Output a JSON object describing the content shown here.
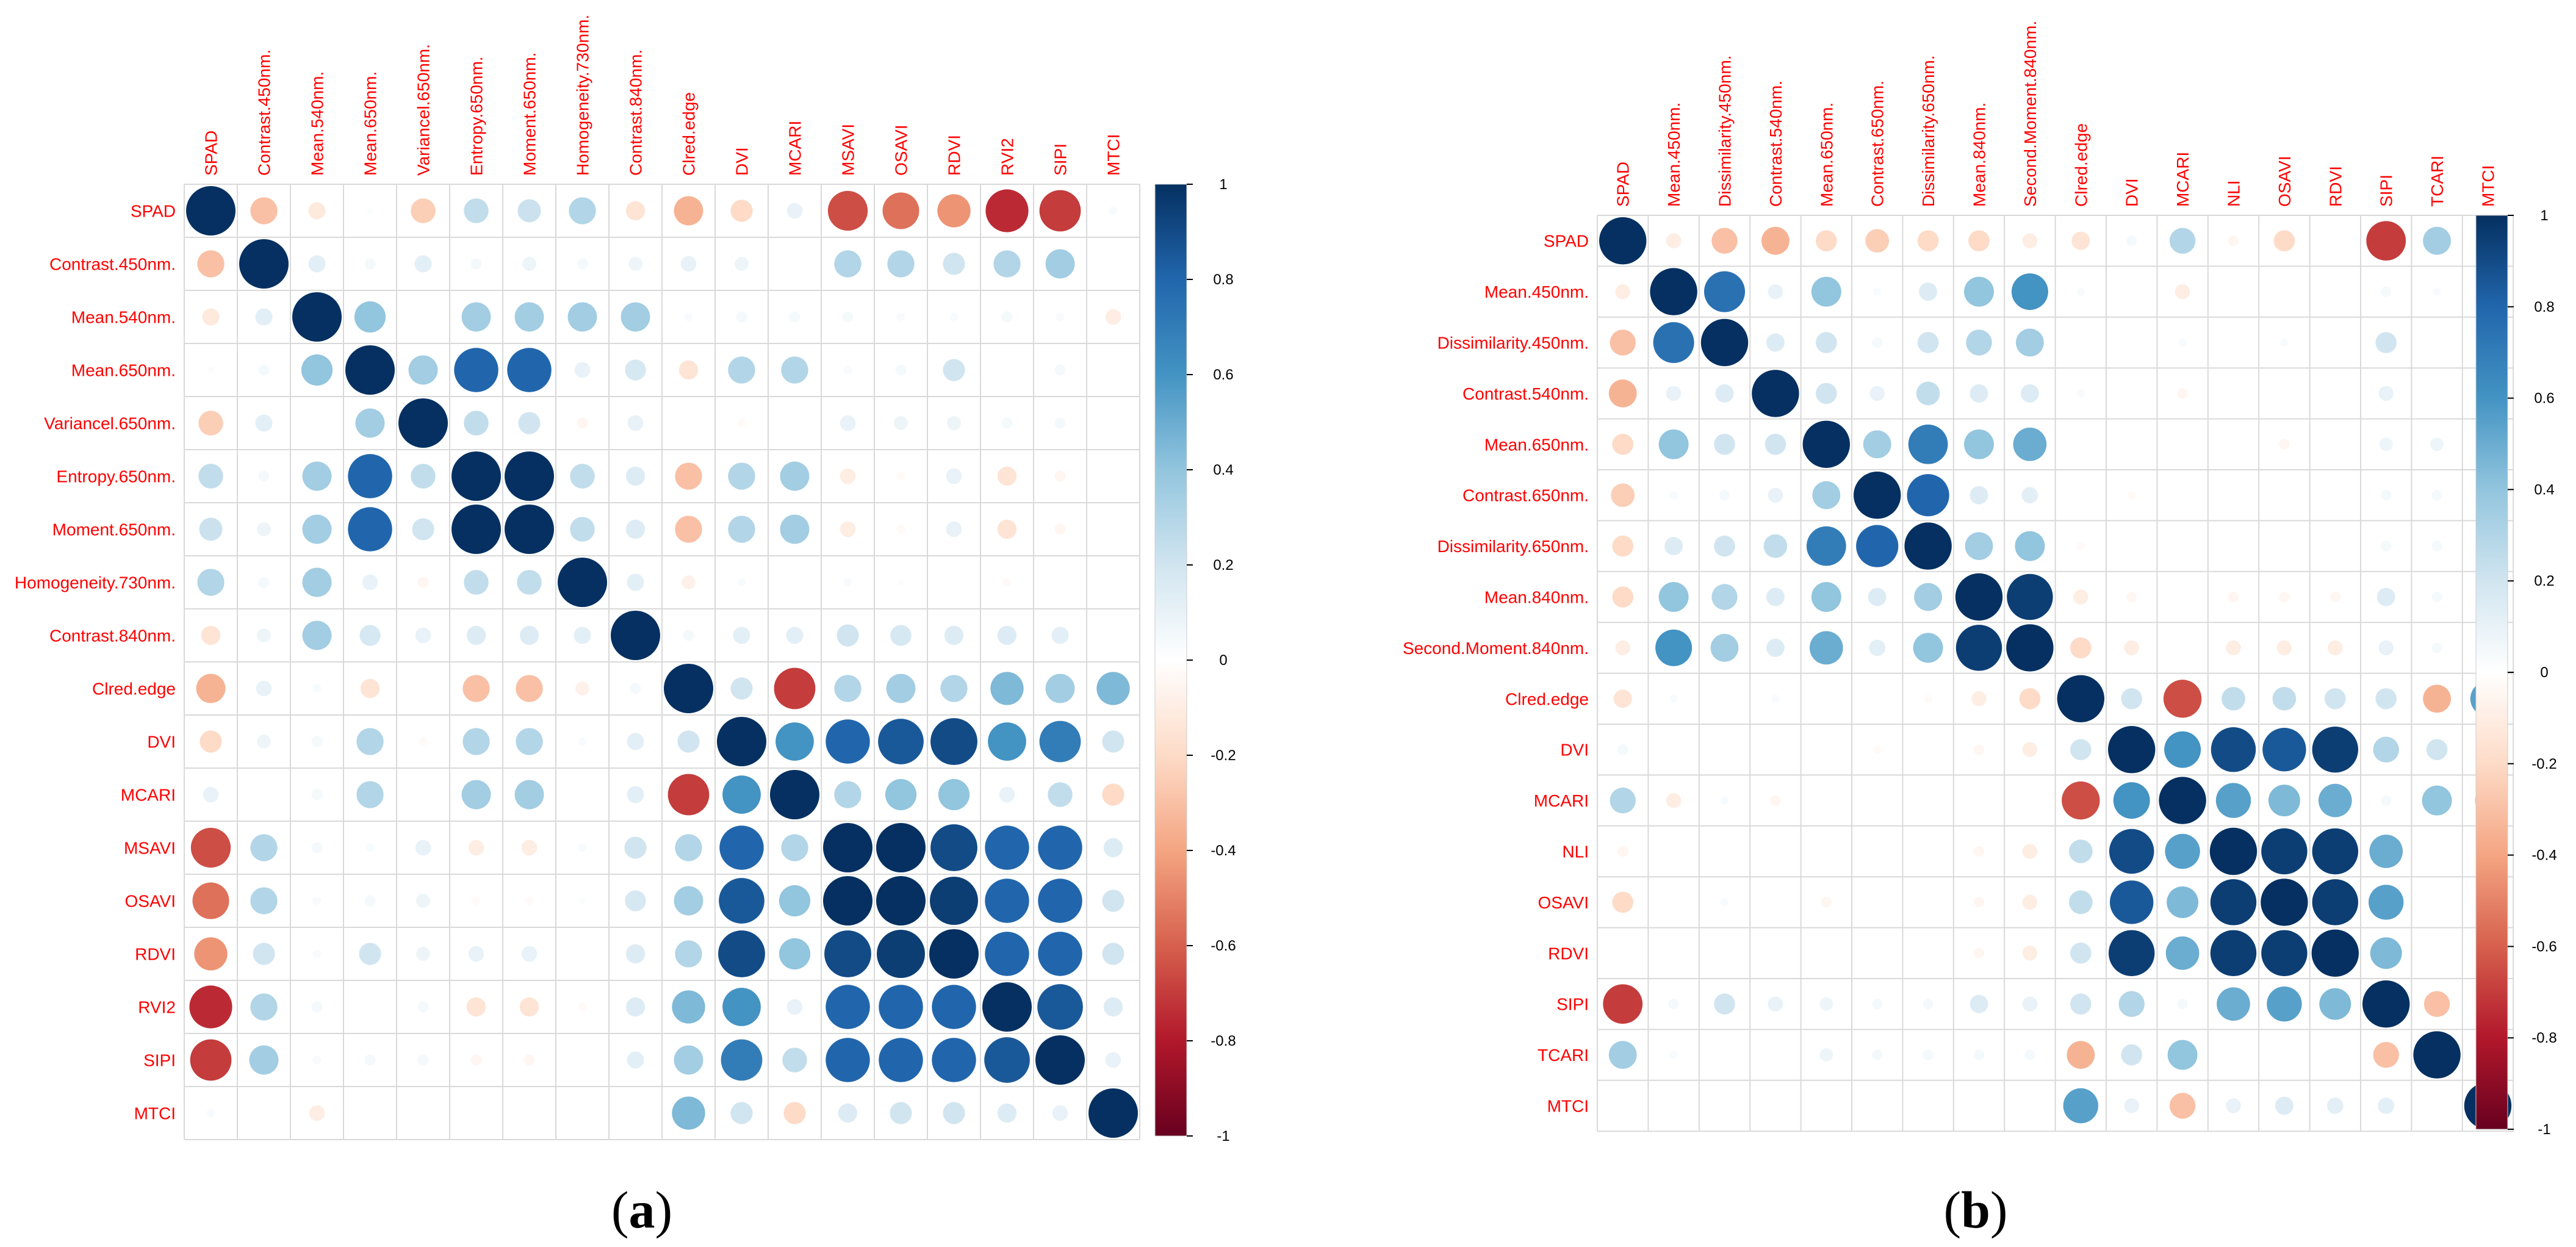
{
  "colors": {
    "label": "#FF0000",
    "grid": "#D9D9D9",
    "scale": [
      "#67001F",
      "#B2182B",
      "#D6604D",
      "#F4A582",
      "#FDDBC7",
      "#FFFFFF",
      "#D1E5F0",
      "#92C5DE",
      "#4393C3",
      "#2166AC",
      "#053061"
    ]
  },
  "chart_data": [
    {
      "type": "heatmap",
      "subtype": "correlation-circles-lower-and-upper",
      "caption_letter": "a",
      "caption_left": "(",
      "caption_right": ")",
      "title": "",
      "variables": [
        "SPAD",
        "Contrast.450nm.",
        "Mean.540nm.",
        "Mean.650nm.",
        "Variancel.650nm.",
        "Entropy.650nm.",
        "Moment.650nm.",
        "Homogeneity.730nm.",
        "Contrast.840nm.",
        "Clred.edge",
        "DVI",
        "MCARI",
        "MSAVI",
        "OSAVI",
        "RDVI",
        "RVI2",
        "SIPI",
        "MTCI"
      ],
      "colorbar_ticks": [
        "1",
        "0.8",
        "0.6",
        "0.4",
        "0.2",
        "0",
        "-0.2",
        "-0.4",
        "-0.6",
        "-0.8",
        "-1"
      ],
      "values": [
        [
          1.0,
          -0.3,
          -0.12,
          0.02,
          -0.25,
          0.25,
          0.22,
          0.3,
          -0.15,
          -0.35,
          -0.2,
          0.1,
          -0.65,
          -0.55,
          -0.45,
          -0.75,
          -0.7,
          0.03
        ],
        [
          -0.3,
          1.0,
          0.12,
          0.05,
          0.12,
          0.05,
          0.08,
          0.05,
          0.08,
          0.1,
          0.08,
          0.0,
          0.3,
          0.3,
          0.2,
          0.3,
          0.35,
          0.0
        ],
        [
          -0.12,
          0.12,
          1.0,
          0.4,
          0.0,
          0.35,
          0.35,
          0.35,
          0.35,
          0.03,
          0.05,
          0.05,
          0.05,
          0.03,
          0.03,
          0.05,
          0.03,
          -0.1
        ],
        [
          0.02,
          0.05,
          0.4,
          1.0,
          0.35,
          0.8,
          0.8,
          0.1,
          0.18,
          -0.15,
          0.3,
          0.3,
          0.03,
          0.05,
          0.2,
          0.0,
          0.05,
          0.0
        ],
        [
          -0.25,
          0.12,
          0.0,
          0.35,
          1.0,
          0.25,
          0.2,
          -0.05,
          0.1,
          0.0,
          -0.03,
          0.0,
          0.1,
          0.08,
          0.08,
          0.05,
          0.05,
          0.0
        ],
        [
          0.25,
          0.05,
          0.35,
          0.8,
          0.25,
          1.0,
          1.0,
          0.25,
          0.15,
          -0.3,
          0.3,
          0.35,
          -0.1,
          -0.03,
          0.1,
          -0.15,
          -0.05,
          0.0
        ],
        [
          0.22,
          0.08,
          0.35,
          0.8,
          0.2,
          1.0,
          1.0,
          0.25,
          0.15,
          -0.3,
          0.3,
          0.35,
          -0.1,
          -0.03,
          0.1,
          -0.15,
          -0.05,
          0.0
        ],
        [
          0.3,
          0.05,
          0.35,
          0.1,
          -0.05,
          0.25,
          0.25,
          1.0,
          0.12,
          -0.08,
          0.03,
          0.0,
          0.03,
          0.02,
          0.0,
          -0.03,
          0.0,
          0.0
        ],
        [
          -0.15,
          0.08,
          0.35,
          0.18,
          0.1,
          0.15,
          0.15,
          0.12,
          1.0,
          0.05,
          0.12,
          0.12,
          0.2,
          0.18,
          0.15,
          0.15,
          0.12,
          0.0
        ],
        [
          -0.35,
          0.1,
          0.03,
          -0.15,
          0.0,
          -0.3,
          -0.3,
          -0.08,
          0.05,
          1.0,
          0.2,
          -0.7,
          0.3,
          0.35,
          0.3,
          0.45,
          0.35,
          0.45
        ],
        [
          -0.2,
          0.08,
          0.05,
          0.3,
          -0.03,
          0.3,
          0.3,
          0.03,
          0.12,
          0.2,
          1.0,
          0.6,
          0.8,
          0.85,
          0.9,
          0.6,
          0.7,
          0.2
        ],
        [
          0.1,
          0.0,
          0.05,
          0.3,
          0.0,
          0.35,
          0.35,
          0.0,
          0.12,
          -0.7,
          0.6,
          1.0,
          0.3,
          0.4,
          0.4,
          0.1,
          0.25,
          -0.2
        ],
        [
          -0.65,
          0.3,
          0.05,
          0.03,
          0.1,
          -0.1,
          -0.1,
          0.03,
          0.2,
          0.3,
          0.8,
          0.3,
          1.0,
          1.0,
          0.9,
          0.8,
          0.8,
          0.15
        ],
        [
          -0.55,
          0.3,
          0.03,
          0.05,
          0.08,
          -0.03,
          -0.03,
          0.02,
          0.18,
          0.35,
          0.85,
          0.4,
          1.0,
          1.0,
          0.95,
          0.8,
          0.8,
          0.2
        ],
        [
          -0.45,
          0.2,
          0.03,
          0.2,
          0.08,
          0.1,
          0.1,
          0.0,
          0.15,
          0.3,
          0.9,
          0.4,
          0.9,
          0.95,
          1.0,
          0.8,
          0.8,
          0.2
        ],
        [
          -0.75,
          0.3,
          0.05,
          0.0,
          0.05,
          -0.15,
          -0.15,
          -0.03,
          0.15,
          0.45,
          0.6,
          0.1,
          0.8,
          0.8,
          0.8,
          1.0,
          0.85,
          0.15
        ],
        [
          -0.7,
          0.35,
          0.03,
          0.05,
          0.05,
          -0.05,
          -0.05,
          0.0,
          0.12,
          0.35,
          0.7,
          0.25,
          0.8,
          0.8,
          0.8,
          0.85,
          1.0,
          0.1
        ],
        [
          0.03,
          0.0,
          -0.1,
          0.0,
          0.0,
          0.0,
          0.0,
          0.0,
          0.0,
          0.45,
          0.2,
          -0.2,
          0.15,
          0.2,
          0.2,
          0.15,
          0.1,
          1.0
        ]
      ],
      "color_limits": [
        -1,
        1
      ],
      "legend": "colorbar right"
    },
    {
      "type": "heatmap",
      "subtype": "correlation-circles-lower-and-upper",
      "caption_letter": "b",
      "caption_left": "(",
      "caption_right": ")",
      "title": "",
      "variables": [
        "SPAD",
        "Mean.450nm.",
        "Dissimilarity.450nm.",
        "Contrast.540nm.",
        "Mean.650nm.",
        "Contrast.650nm.",
        "Dissimilarity.650nm.",
        "Mean.840nm.",
        "Second.Moment.840nm.",
        "Clred.edge",
        "DVI",
        "MCARI",
        "NLI",
        "OSAVI",
        "RDVI",
        "SIPI",
        "TCARI",
        "MTCI"
      ],
      "colorbar_ticks": [
        "1",
        "0.8",
        "0.6",
        "0.4",
        "0.2",
        "0",
        "-0.2",
        "-0.4",
        "-0.6",
        "-0.8",
        "-1"
      ],
      "values": [
        [
          1.0,
          -0.1,
          -0.3,
          -0.35,
          -0.2,
          -0.25,
          -0.2,
          -0.2,
          -0.1,
          -0.15,
          0.05,
          0.3,
          -0.05,
          -0.2,
          0.0,
          -0.7,
          0.35,
          0.0
        ],
        [
          -0.1,
          1.0,
          0.75,
          0.1,
          0.4,
          0.03,
          0.15,
          0.4,
          0.6,
          0.03,
          0.0,
          -0.1,
          0.0,
          0.0,
          0.0,
          0.05,
          0.03,
          0.0
        ],
        [
          -0.3,
          0.75,
          1.0,
          0.15,
          0.2,
          0.05,
          0.2,
          0.3,
          0.35,
          0.0,
          0.0,
          0.03,
          0.0,
          0.03,
          0.0,
          0.2,
          0.0,
          0.0
        ],
        [
          -0.35,
          0.1,
          0.15,
          1.0,
          0.2,
          0.1,
          0.25,
          0.15,
          0.15,
          0.03,
          0.0,
          -0.05,
          0.0,
          0.0,
          0.0,
          0.1,
          0.0,
          0.0
        ],
        [
          -0.2,
          0.4,
          0.2,
          0.2,
          1.0,
          0.35,
          0.7,
          0.4,
          0.5,
          0.0,
          0.0,
          0.0,
          0.0,
          -0.05,
          0.0,
          0.08,
          0.08,
          0.0
        ],
        [
          -0.25,
          0.03,
          0.05,
          0.1,
          0.35,
          1.0,
          0.8,
          0.15,
          0.12,
          0.0,
          -0.03,
          0.0,
          0.0,
          0.0,
          0.0,
          0.05,
          0.05,
          0.0
        ],
        [
          -0.2,
          0.15,
          0.2,
          0.25,
          0.7,
          0.8,
          1.0,
          0.35,
          0.4,
          -0.03,
          0.0,
          0.0,
          0.0,
          0.0,
          0.0,
          0.05,
          0.05,
          0.0
        ],
        [
          -0.2,
          0.4,
          0.3,
          0.15,
          0.4,
          0.15,
          0.35,
          1.0,
          0.95,
          -0.1,
          -0.05,
          0.0,
          -0.05,
          -0.05,
          -0.05,
          0.15,
          0.05,
          0.0
        ],
        [
          -0.1,
          0.6,
          0.35,
          0.15,
          0.5,
          0.12,
          0.4,
          0.95,
          1.0,
          -0.2,
          -0.1,
          0.0,
          -0.1,
          -0.1,
          -0.1,
          0.1,
          0.05,
          0.0
        ],
        [
          -0.15,
          0.03,
          0.0,
          0.03,
          0.0,
          0.0,
          -0.03,
          -0.1,
          -0.2,
          1.0,
          0.2,
          -0.65,
          0.25,
          0.25,
          0.2,
          0.2,
          -0.35,
          0.55
        ],
        [
          0.05,
          0.0,
          0.0,
          0.0,
          0.0,
          -0.03,
          0.0,
          -0.05,
          -0.1,
          0.2,
          1.0,
          0.6,
          0.9,
          0.85,
          0.95,
          0.3,
          0.2,
          0.1
        ],
        [
          0.3,
          -0.1,
          0.03,
          -0.05,
          0.0,
          0.0,
          0.0,
          0.0,
          0.0,
          -0.65,
          0.6,
          1.0,
          0.55,
          0.45,
          0.5,
          0.05,
          0.4,
          -0.3
        ],
        [
          -0.05,
          0.0,
          0.0,
          0.0,
          0.0,
          0.0,
          0.0,
          -0.05,
          -0.1,
          0.25,
          0.9,
          0.55,
          1.0,
          0.95,
          0.95,
          0.5,
          0.0,
          0.1
        ],
        [
          -0.2,
          0.0,
          0.03,
          0.0,
          -0.05,
          0.0,
          0.0,
          -0.05,
          -0.1,
          0.25,
          0.85,
          0.45,
          0.95,
          1.0,
          0.95,
          0.55,
          0.0,
          0.15
        ],
        [
          0.0,
          0.0,
          0.0,
          0.0,
          0.0,
          0.0,
          0.0,
          -0.05,
          -0.1,
          0.2,
          0.95,
          0.5,
          0.95,
          0.95,
          1.0,
          0.45,
          0.0,
          0.12
        ],
        [
          -0.7,
          0.05,
          0.2,
          0.1,
          0.08,
          0.05,
          0.05,
          0.15,
          0.1,
          0.2,
          0.3,
          0.05,
          0.5,
          0.55,
          0.45,
          1.0,
          -0.3,
          0.12
        ],
        [
          0.35,
          0.03,
          0.0,
          0.0,
          0.08,
          0.05,
          0.05,
          0.05,
          0.05,
          -0.35,
          0.2,
          0.4,
          0.0,
          0.0,
          0.0,
          -0.3,
          1.0,
          0.0
        ],
        [
          0.0,
          0.0,
          0.0,
          0.0,
          0.0,
          0.0,
          0.0,
          0.0,
          0.0,
          0.55,
          0.1,
          -0.3,
          0.1,
          0.15,
          0.12,
          0.12,
          0.0,
          1.0
        ]
      ],
      "color_limits": [
        -1,
        1
      ],
      "legend": "colorbar right"
    }
  ]
}
